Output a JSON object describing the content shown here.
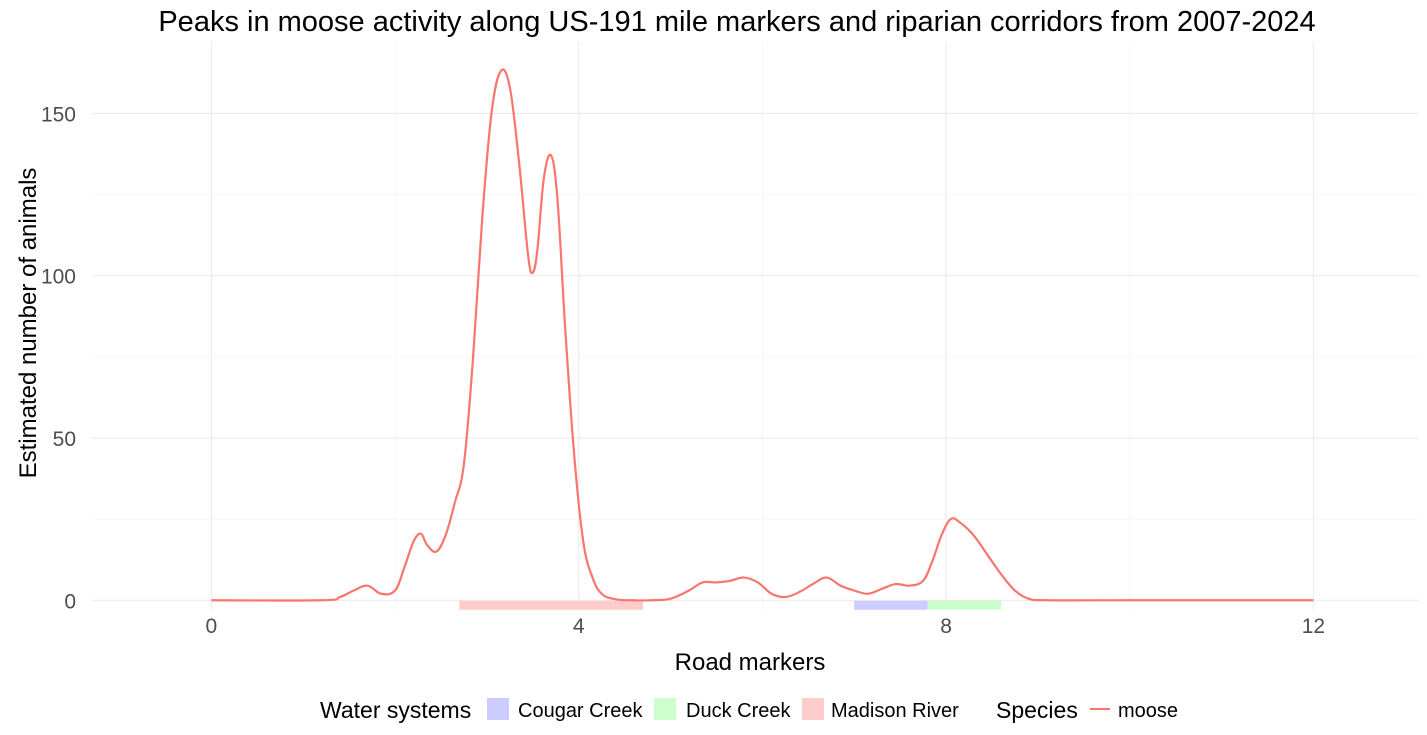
{
  "chart_data": {
    "type": "line",
    "title": "Peaks in moose activity along US-191 mile markers and riparian corridors from 2007-2024",
    "xlabel": "Road markers",
    "ylabel": "Estimated number of animals",
    "xlim": [
      -1.3,
      13.15
    ],
    "ylim": [
      -3,
      172
    ],
    "x_ticks": [
      0,
      4,
      8,
      12
    ],
    "x_tick_labels": [
      "0",
      "4",
      "8",
      "12"
    ],
    "y_ticks": [
      0,
      50,
      100,
      150
    ],
    "y_tick_labels": [
      "0",
      "50",
      "100",
      "150"
    ],
    "grid": true,
    "legend_position": "bottom",
    "water_systems": {
      "title": "Water systems",
      "items": [
        {
          "name": "Cougar Creek",
          "color": "#ccccff",
          "range": [
            7.0,
            7.8
          ]
        },
        {
          "name": "Duck Creek",
          "color": "#ccffcc",
          "range": [
            7.8,
            8.6
          ]
        },
        {
          "name": "Madison River",
          "color": "#ffcccc",
          "range": [
            2.7,
            4.7
          ]
        }
      ]
    },
    "species": {
      "title": "Species",
      "items": [
        {
          "name": "moose",
          "color": "#f8766d"
        }
      ]
    },
    "series": [
      {
        "name": "moose",
        "color": "#f8766d",
        "x": [
          0,
          1.2,
          1.4,
          1.55,
          1.7,
          1.85,
          2.0,
          2.1,
          2.2,
          2.28,
          2.35,
          2.45,
          2.55,
          2.65,
          2.75,
          2.85,
          2.95,
          3.05,
          3.15,
          3.25,
          3.35,
          3.45,
          3.5,
          3.55,
          3.62,
          3.7,
          3.77,
          3.85,
          3.95,
          4.05,
          4.15,
          4.25,
          4.4,
          4.6,
          4.8,
          5.0,
          5.2,
          5.35,
          5.5,
          5.65,
          5.8,
          5.95,
          6.1,
          6.25,
          6.4,
          6.55,
          6.7,
          6.85,
          7.0,
          7.15,
          7.3,
          7.45,
          7.6,
          7.75,
          7.85,
          7.95,
          8.05,
          8.15,
          8.3,
          8.45,
          8.6,
          8.75,
          8.9,
          9.1,
          10,
          11,
          12
        ],
        "values": [
          0,
          0,
          1,
          3,
          4.5,
          2,
          3,
          10,
          18,
          20.5,
          17,
          15,
          20,
          30,
          42,
          75,
          118,
          150,
          163,
          158,
          135,
          106,
          101,
          108,
          130,
          137,
          123,
          85,
          45,
          18,
          7,
          2,
          0.3,
          0,
          0,
          0.5,
          3,
          5.5,
          5.5,
          6,
          7,
          5.5,
          2,
          1,
          2.5,
          5,
          7,
          4.5,
          3,
          2,
          3.5,
          5,
          4.5,
          6,
          12,
          20,
          25,
          24,
          20,
          14,
          8,
          3,
          0.5,
          0,
          0,
          0,
          0
        ]
      }
    ]
  }
}
